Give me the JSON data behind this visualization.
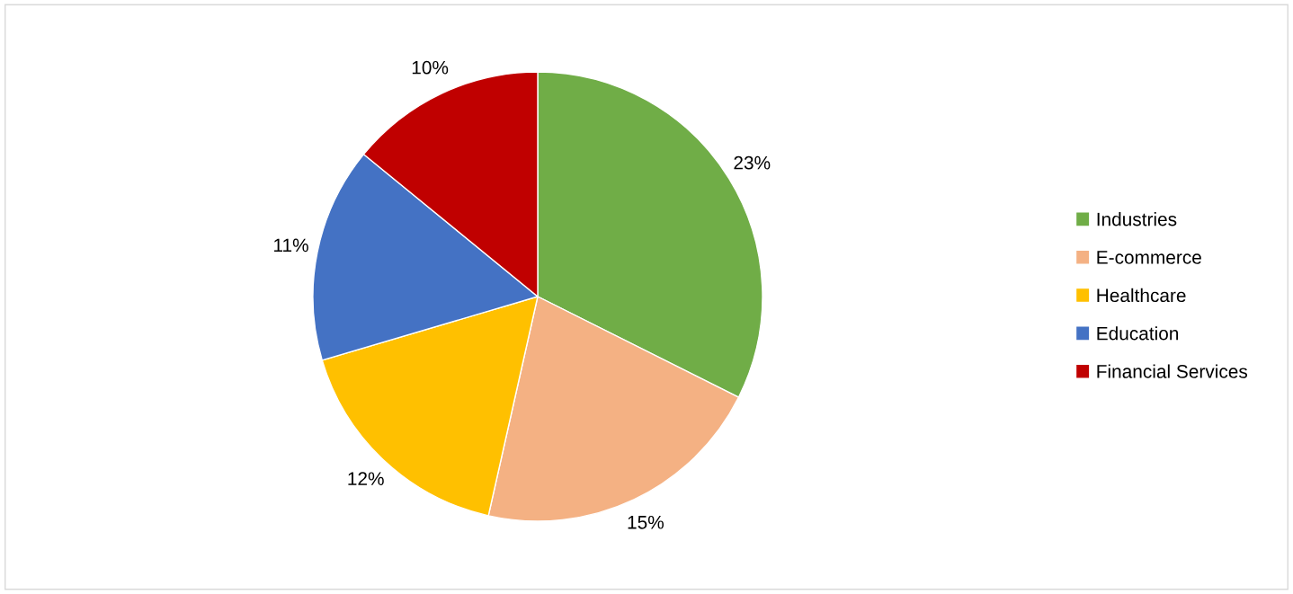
{
  "chart_data": {
    "type": "pie",
    "categories": [
      "Industries",
      "E-commerce",
      "Healthcare",
      "Education",
      "Financial Services"
    ],
    "values": [
      23,
      15,
      12,
      11,
      10
    ],
    "colors": [
      "#70ad47",
      "#f4b183",
      "#ffc000",
      "#4472c4",
      "#c00000"
    ],
    "value_labels": [
      "23%",
      "15%",
      "12%",
      "11%",
      "10%"
    ],
    "legend": "right"
  }
}
